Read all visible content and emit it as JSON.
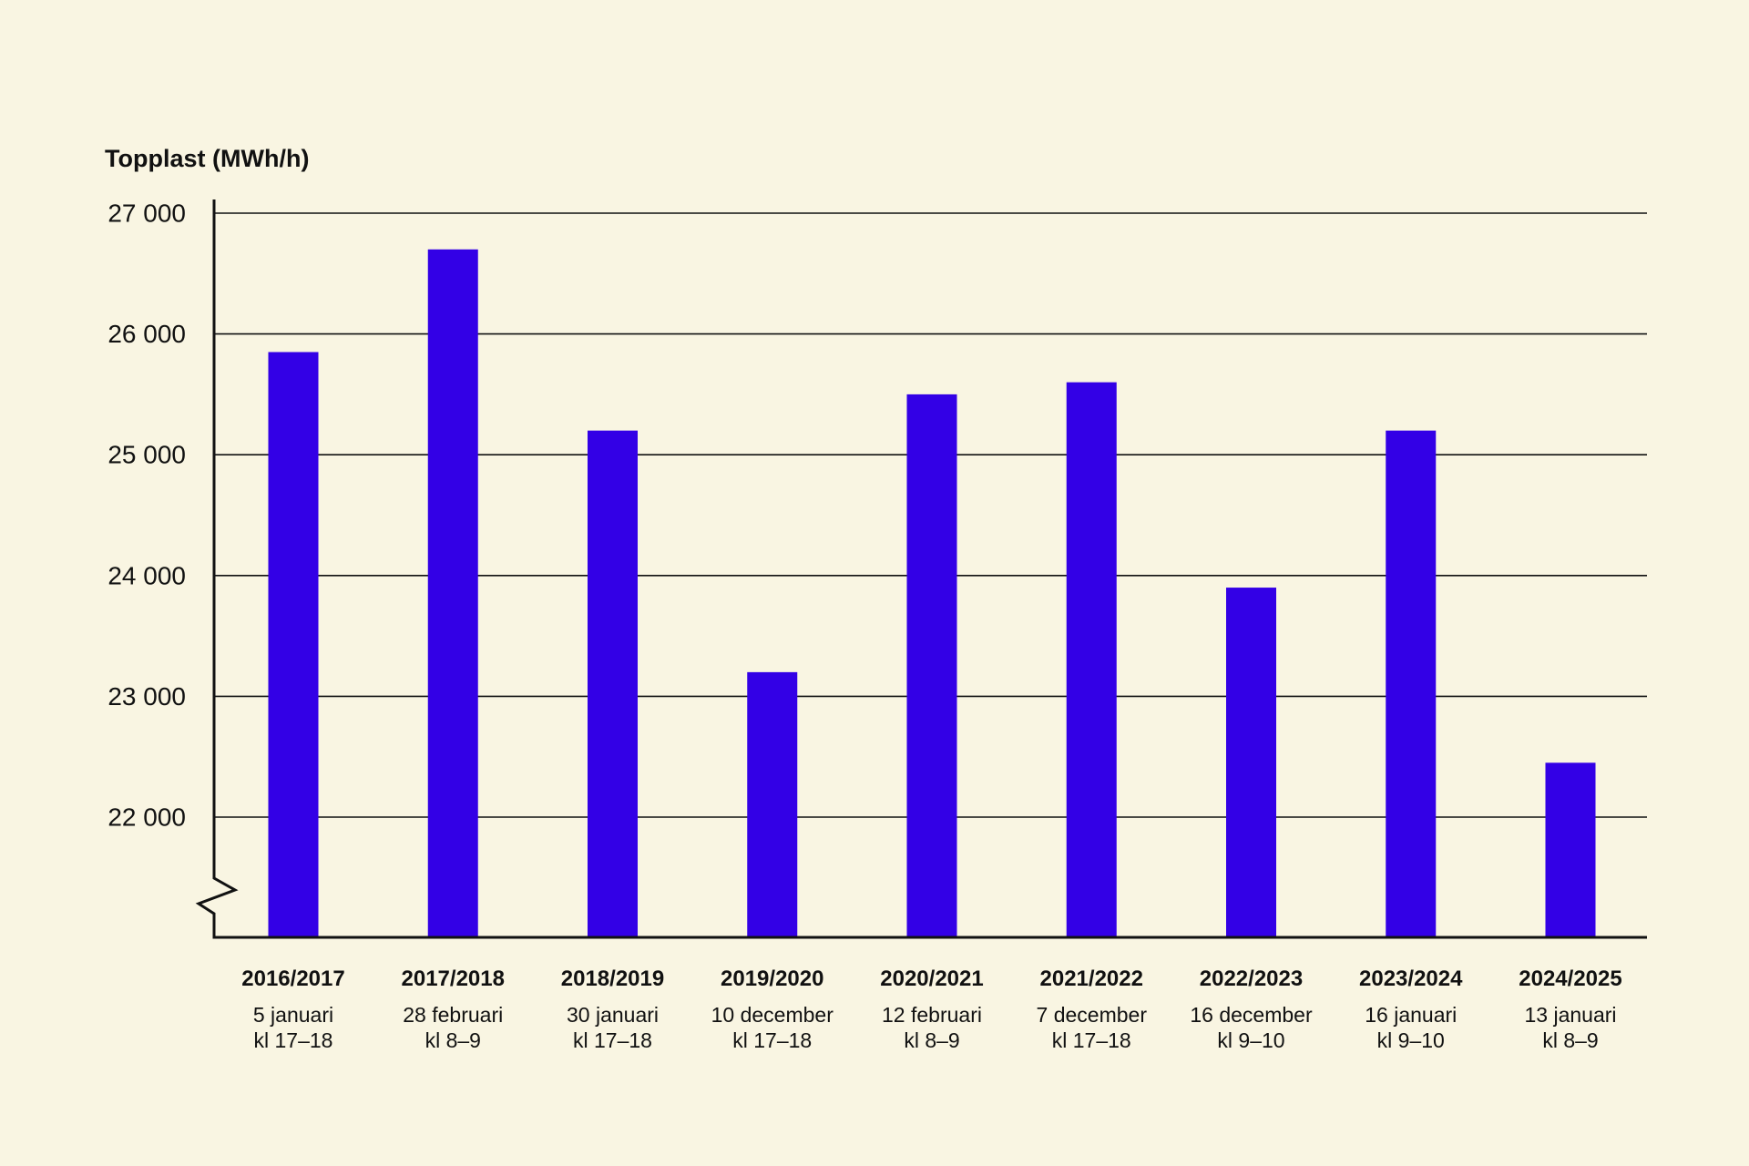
{
  "chart_data": {
    "type": "bar",
    "ylabel": "Topplast (MWh/h)",
    "ylim": [
      21000,
      27000
    ],
    "axis_break": true,
    "yticks": [
      {
        "value": 27000,
        "label": "27 000"
      },
      {
        "value": 26000,
        "label": "26 000"
      },
      {
        "value": 25000,
        "label": "25 000"
      },
      {
        "value": 24000,
        "label": "24 000"
      },
      {
        "value": 23000,
        "label": "23 000"
      },
      {
        "value": 22000,
        "label": "22 000"
      }
    ],
    "categories": [
      "2016/2017",
      "2017/2018",
      "2018/2019",
      "2019/2020",
      "2020/2021",
      "2021/2022",
      "2022/2023",
      "2023/2024",
      "2024/2025"
    ],
    "dates": [
      "5 januari",
      "28 februari",
      "30 januari",
      "10 december",
      "12 februari",
      "7 december",
      "16 december",
      "16 januari",
      "13 januari"
    ],
    "hours": [
      "kl 17–18",
      "kl 8–9",
      "kl 17–18",
      "kl 17–18",
      "kl 8–9",
      "kl 17–18",
      "kl 9–10",
      "kl 9–10",
      "kl 8–9"
    ],
    "values": [
      25850,
      26700,
      25200,
      23200,
      25500,
      25600,
      23900,
      25200,
      22450
    ],
    "colors": {
      "bar": "#3300e6",
      "background": "#f9f5e2",
      "axis": "#111111",
      "grid": "#111111"
    }
  }
}
